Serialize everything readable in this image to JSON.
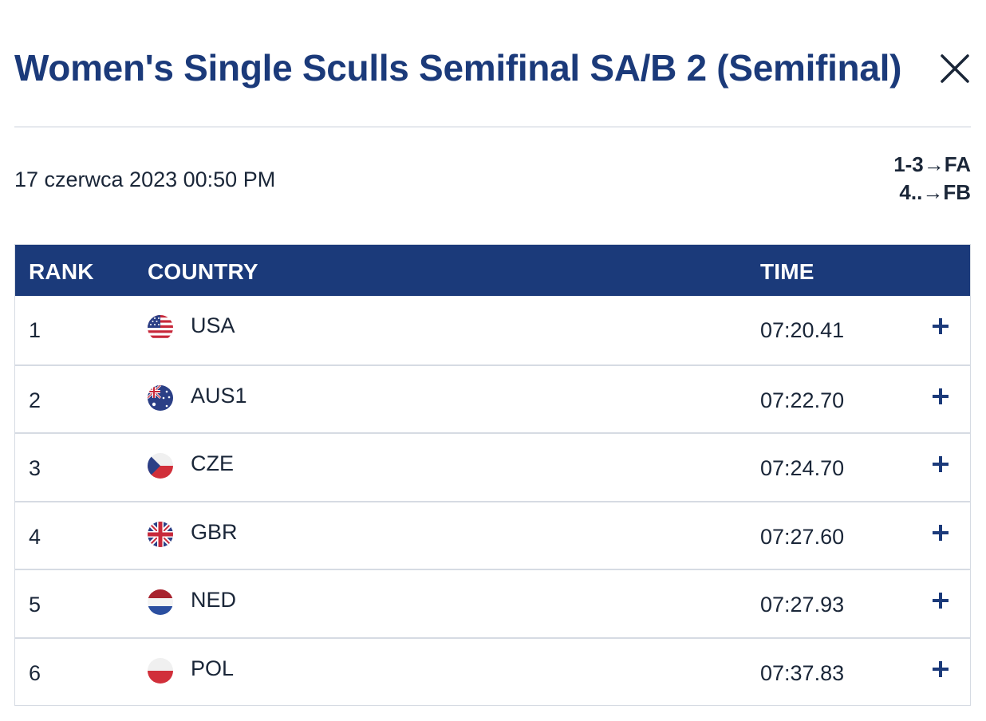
{
  "header": {
    "title": "Women's Single Sculls Semifinal SA/B 2 (Semifinal)"
  },
  "meta": {
    "date": "17 czerwca 2023 00:50 PM",
    "progression": [
      {
        "range": "1-3",
        "arrow": "→",
        "target": "FA"
      },
      {
        "range": "4..",
        "arrow": "→",
        "target": "FB"
      }
    ]
  },
  "table": {
    "headers": {
      "rank": "RANK",
      "country": "COUNTRY",
      "time": "TIME"
    },
    "rows": [
      {
        "rank": "1",
        "country": "USA",
        "flag": "usa-flag-icon",
        "time": "07:20.41"
      },
      {
        "rank": "2",
        "country": "AUS1",
        "flag": "australia-flag-icon",
        "time": "07:22.70"
      },
      {
        "rank": "3",
        "country": "CZE",
        "flag": "czech-flag-icon",
        "time": "07:24.70"
      },
      {
        "rank": "4",
        "country": "GBR",
        "flag": "uk-flag-icon",
        "time": "07:27.60"
      },
      {
        "rank": "5",
        "country": "NED",
        "flag": "netherlands-flag-icon",
        "time": "07:27.93"
      },
      {
        "rank": "6",
        "country": "POL",
        "flag": "poland-flag-icon",
        "time": "07:37.83"
      }
    ]
  },
  "colors": {
    "brand": "#1b3a7a",
    "divider": "#d6dbe3"
  }
}
